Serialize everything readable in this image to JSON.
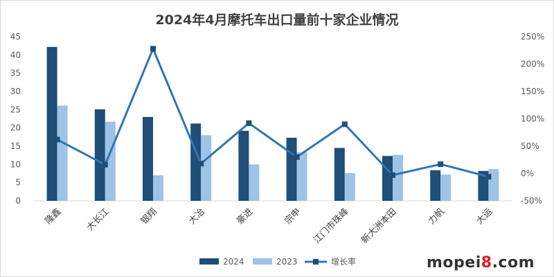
{
  "chart_data": {
    "type": "bar",
    "title": "2024年4月摩托车出口量前十家企业情况",
    "categories": [
      "隆鑫",
      "大长江",
      "银翔",
      "大冶",
      "豪进",
      "宗申",
      "江门市珠峰",
      "新大洲本田",
      "力帆",
      "大运"
    ],
    "series": [
      {
        "name": "2024",
        "type": "bar",
        "color": "#1f4e79",
        "values": [
          42.2,
          25.1,
          23.0,
          21.2,
          19.2,
          17.3,
          14.5,
          12.3,
          8.4,
          8.2
        ]
      },
      {
        "name": "2023",
        "type": "bar",
        "color": "#9dc3e6",
        "values": [
          26.1,
          21.7,
          7.0,
          18.0,
          10.0,
          13.3,
          7.6,
          12.6,
          7.2,
          8.7
        ]
      },
      {
        "name": "增长率",
        "type": "line",
        "axis": "right",
        "color": "#2e75b6",
        "values": [
          62,
          16,
          228,
          18,
          92,
          30,
          90,
          -3,
          17,
          -6
        ]
      }
    ],
    "yleft": {
      "min": 0,
      "max": 45,
      "step": 5,
      "ticks": [
        "0",
        "5",
        "10",
        "15",
        "20",
        "25",
        "30",
        "35",
        "40",
        "45"
      ]
    },
    "yright": {
      "min": -50,
      "max": 250,
      "step": 50,
      "ticks": [
        "-50%",
        "0%",
        "50%",
        "100%",
        "150%",
        "200%",
        "250%"
      ]
    },
    "legend_position": "bottom",
    "grid": false
  },
  "watermark": {
    "prefix": "mopei",
    "accent": "8",
    "suffix": ".com"
  }
}
